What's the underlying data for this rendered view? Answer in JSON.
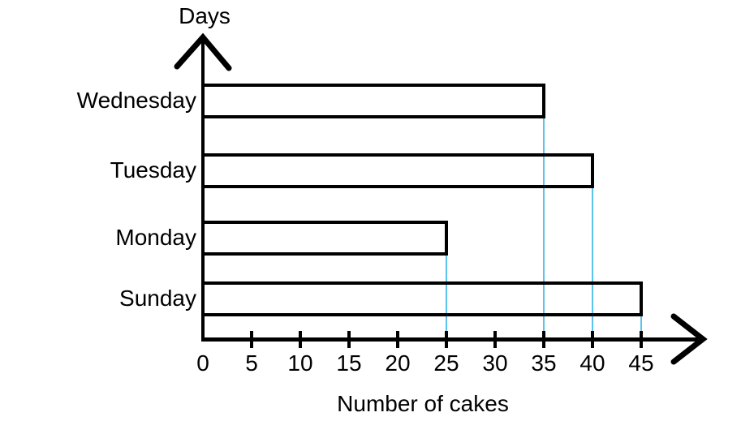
{
  "chart_data": {
    "type": "bar",
    "orientation": "horizontal",
    "title": "",
    "xlabel": "Number of cakes",
    "ylabel": "Days",
    "categories": [
      "Wednesday",
      "Tuesday",
      "Monday",
      "Sunday"
    ],
    "values": [
      35,
      40,
      25,
      45
    ],
    "xticks": [
      0,
      5,
      10,
      15,
      20,
      25,
      30,
      35,
      40,
      45
    ],
    "xlim": [
      0,
      50
    ],
    "grid": "vertical-value-lines-at-bar-ends",
    "legend": "none",
    "bar_fill": "transparent",
    "colors": {
      "line": "#000000",
      "text": "#000000",
      "gridline": "#5bc2e9",
      "background": "#ffffff"
    }
  }
}
